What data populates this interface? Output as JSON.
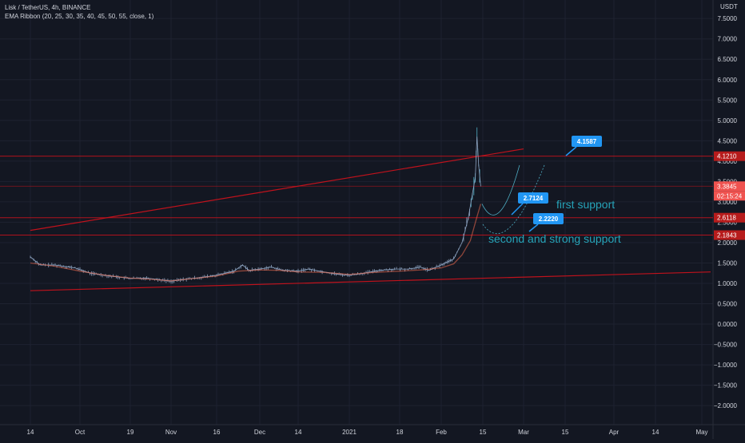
{
  "header": {
    "symbol_line": "Lisk / TetherUS, 4h, BINANCE",
    "indicator_line": "EMA Ribbon (20, 25, 30, 35, 40, 45, 50, 55, close, 1)",
    "currency": "USDT"
  },
  "colors": {
    "background": "#131722",
    "grid": "#1e2230",
    "axis_text": "#d1d4dc",
    "trendline": "#c0121c",
    "ribbon": "#f26b4e",
    "candle": "#8fa6c4",
    "spike": "#4fb0c6",
    "label_blue": "#2196f3",
    "annotation_text": "#26a3b8",
    "price_tag_red": "#b71c1c",
    "current_price_tag": "#ef5350"
  },
  "chart_data": {
    "type": "line",
    "title": "Lisk / TetherUS, 4h, BINANCE",
    "y_axis_ticks": [
      "7.5000",
      "7.0000",
      "6.5000",
      "6.0000",
      "5.5000",
      "5.0000",
      "4.5000",
      "4.0000",
      "3.5000",
      "3.0000",
      "2.5000",
      "2.0000",
      "1.5000",
      "1.0000",
      "0.5000",
      "0.0000",
      "−0.5000",
      "−1.0000",
      "−1.5000",
      "−2.0000"
    ],
    "y_axis_values": [
      7.5,
      7.0,
      6.5,
      6.0,
      5.5,
      5.0,
      4.5,
      4.0,
      3.5,
      3.0,
      2.5,
      2.0,
      1.5,
      1.0,
      0.5,
      0.0,
      -0.5,
      -1.0,
      -1.5,
      -2.0
    ],
    "ylim": [
      -2.2,
      7.8
    ],
    "x_axis_ticks": [
      {
        "label": "14",
        "x_index": 0
      },
      {
        "label": "Oct",
        "x_index": 1
      },
      {
        "label": "19",
        "x_index": 2
      },
      {
        "label": "Nov",
        "x_index": 3
      },
      {
        "label": "16",
        "x_index": 4
      },
      {
        "label": "Dec",
        "x_index": 5
      },
      {
        "label": "14",
        "x_index": 6
      },
      {
        "label": "2021",
        "x_index": 7
      },
      {
        "label": "18",
        "x_index": 8
      },
      {
        "label": "Feb",
        "x_index": 9
      },
      {
        "label": "15",
        "x_index": 10
      },
      {
        "label": "Mar",
        "x_index": 11
      },
      {
        "label": "15",
        "x_index": 12
      },
      {
        "label": "Apr",
        "x_index": 13
      },
      {
        "label": "14",
        "x_index": 14
      },
      {
        "label": "May",
        "x_index": 15
      }
    ],
    "price_series": {
      "name": "Lisk / TetherUS",
      "points": [
        [
          0,
          1.65
        ],
        [
          0.2,
          1.45
        ],
        [
          0.5,
          1.45
        ],
        [
          0.9,
          1.38
        ],
        [
          1.2,
          1.25
        ],
        [
          1.6,
          1.18
        ],
        [
          2,
          1.12
        ],
        [
          2.4,
          1.13
        ],
        [
          2.8,
          1.08
        ],
        [
          3,
          1.05
        ],
        [
          3.3,
          1.1
        ],
        [
          3.7,
          1.15
        ],
        [
          4,
          1.2
        ],
        [
          4.4,
          1.3
        ],
        [
          4.6,
          1.45
        ],
        [
          4.75,
          1.32
        ],
        [
          5,
          1.35
        ],
        [
          5.3,
          1.4
        ],
        [
          5.6,
          1.32
        ],
        [
          6,
          1.3
        ],
        [
          6.2,
          1.35
        ],
        [
          6.5,
          1.28
        ],
        [
          6.8,
          1.22
        ],
        [
          7,
          1.2
        ],
        [
          7.3,
          1.25
        ],
        [
          7.6,
          1.32
        ],
        [
          7.9,
          1.35
        ],
        [
          8.2,
          1.35
        ],
        [
          8.5,
          1.4
        ],
        [
          8.7,
          1.32
        ],
        [
          9,
          1.45
        ],
        [
          9.3,
          1.6
        ],
        [
          9.5,
          2.0
        ],
        [
          9.65,
          2.6
        ],
        [
          9.75,
          3.2
        ],
        [
          9.82,
          3.6
        ],
        [
          9.86,
          4.6
        ],
        [
          9.9,
          3.9
        ],
        [
          9.95,
          3.38
        ]
      ]
    },
    "ribbon_series": {
      "name": "EMA Ribbon (20, 25, 30, 35, 40, 45, 50, 55, close, 1)",
      "points": [
        [
          0,
          1.5
        ],
        [
          0.5,
          1.42
        ],
        [
          1,
          1.3
        ],
        [
          1.5,
          1.2
        ],
        [
          2,
          1.13
        ],
        [
          2.5,
          1.1
        ],
        [
          3,
          1.06
        ],
        [
          3.5,
          1.12
        ],
        [
          4,
          1.18
        ],
        [
          4.5,
          1.3
        ],
        [
          5,
          1.33
        ],
        [
          5.5,
          1.32
        ],
        [
          6,
          1.28
        ],
        [
          6.5,
          1.27
        ],
        [
          7,
          1.22
        ],
        [
          7.5,
          1.27
        ],
        [
          8,
          1.3
        ],
        [
          8.5,
          1.33
        ],
        [
          9,
          1.38
        ],
        [
          9.3,
          1.48
        ],
        [
          9.5,
          1.7
        ],
        [
          9.7,
          2.05
        ],
        [
          9.85,
          2.6
        ],
        [
          9.95,
          2.95
        ]
      ]
    },
    "horizontal_levels": [
      4.121,
      3.3845,
      2.6118,
      2.1843
    ],
    "trendlines": [
      {
        "from": [
          0,
          2.3
        ],
        "to": [
          11.0,
          4.3
        ]
      },
      {
        "from": [
          0,
          0.82
        ],
        "to": [
          15.2,
          1.28
        ]
      }
    ],
    "price_tags": [
      "4.1210",
      "3.3845",
      "2.6118",
      "2.1843"
    ],
    "current_price": "3.3845",
    "countdown": "02:15:24",
    "labels": [
      {
        "text": "4.1587",
        "value": 4.1587
      },
      {
        "text": "2.7124",
        "value": 2.7124
      },
      {
        "text": "2.2220",
        "value": 2.222
      }
    ],
    "annotations": [
      "first support",
      "second and strong support"
    ]
  }
}
